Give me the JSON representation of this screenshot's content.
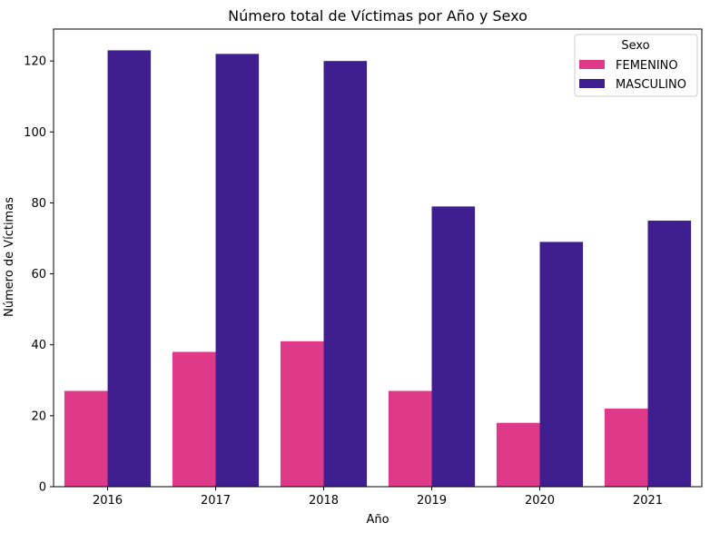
{
  "chart_data": {
    "type": "bar",
    "title": "Número total de Víctimas por Año y Sexo",
    "xlabel": "Año",
    "ylabel": "Número de Víctimas",
    "categories": [
      "2016",
      "2017",
      "2018",
      "2019",
      "2020",
      "2021"
    ],
    "ylim": [
      0,
      129
    ],
    "yticks": [
      0,
      20,
      40,
      60,
      80,
      100,
      120
    ],
    "grid": false,
    "legend": {
      "title": "Sexo",
      "position": "top-right"
    },
    "series": [
      {
        "name": "FEMENINO",
        "color": "#df3a8a",
        "values": [
          27,
          38,
          41,
          27,
          18,
          22
        ]
      },
      {
        "name": "MASCULINO",
        "color": "#3f1f8f",
        "values": [
          123,
          122,
          120,
          79,
          69,
          75
        ]
      }
    ]
  }
}
